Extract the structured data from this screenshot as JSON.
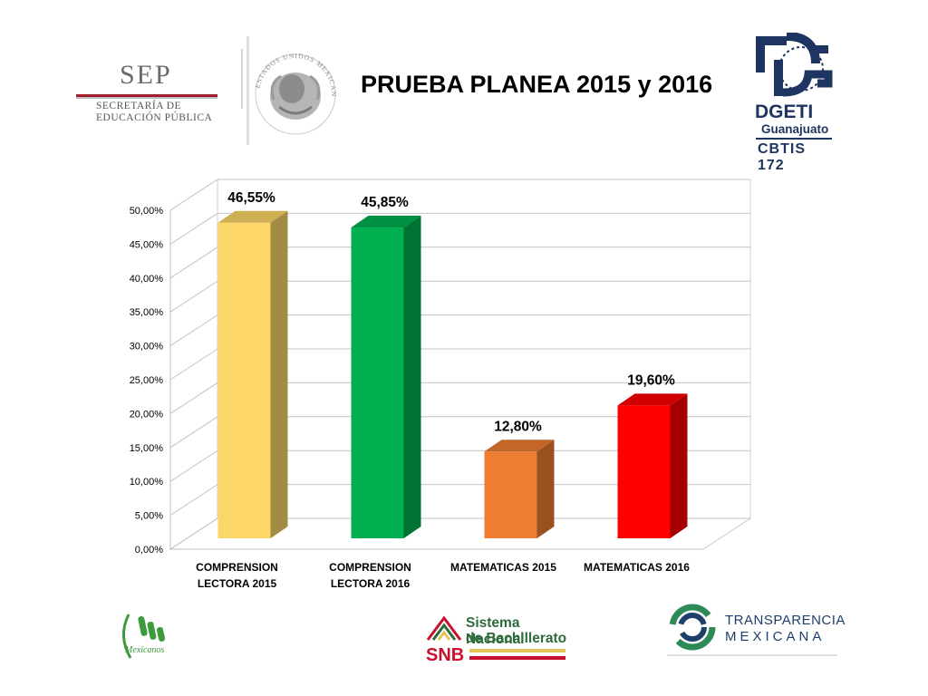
{
  "header": {
    "title": "PRUEBA PLANEA 2015 y 2016",
    "sep_logo": {
      "word": "SEP",
      "line1": "SECRETARÍA DE",
      "line2": "EDUCACIÓN PÚBLICA"
    },
    "seal_text": "ESTADOS UNIDOS MEXICANOS",
    "dgeti_logo": {
      "word": "DGETI",
      "region": "Guanajuato",
      "school": "CBTIS 172"
    }
  },
  "chart_data": {
    "type": "bar",
    "categories": [
      [
        "COMPRENSION",
        "LECTORA 2015"
      ],
      [
        "COMPRENSION",
        "LECTORA 2016"
      ],
      [
        "MATEMATICAS 2015"
      ],
      [
        "MATEMATICAS 2016"
      ]
    ],
    "values": [
      46.55,
      45.85,
      12.8,
      19.6
    ],
    "data_labels": [
      "46,55%",
      "45,85%",
      "12,80%",
      "19,60%"
    ],
    "colors": [
      "#fcd667",
      "#00b050",
      "#ed7d31",
      "#ff0000"
    ],
    "ylim": [
      0,
      50
    ],
    "yticks": [
      0,
      5,
      10,
      15,
      20,
      25,
      30,
      35,
      40,
      45,
      50
    ],
    "ytick_labels": [
      "0,00%",
      "5,00%",
      "10,00%",
      "15,00%",
      "20,00%",
      "25,00%",
      "30,00%",
      "35,00%",
      "40,00%",
      "45,00%",
      "50,00%"
    ],
    "grid": true,
    "style": "3d-column"
  },
  "footer": {
    "mexicanos_logo": "Mexicanos",
    "snb_logo": {
      "line1": "Sistema Nacional",
      "line2": "de Bachillerato",
      "abbr": "SNB"
    },
    "transparencia_logo": {
      "line1": "TRANSPARENCIA",
      "line2": "MEXICANA"
    }
  }
}
